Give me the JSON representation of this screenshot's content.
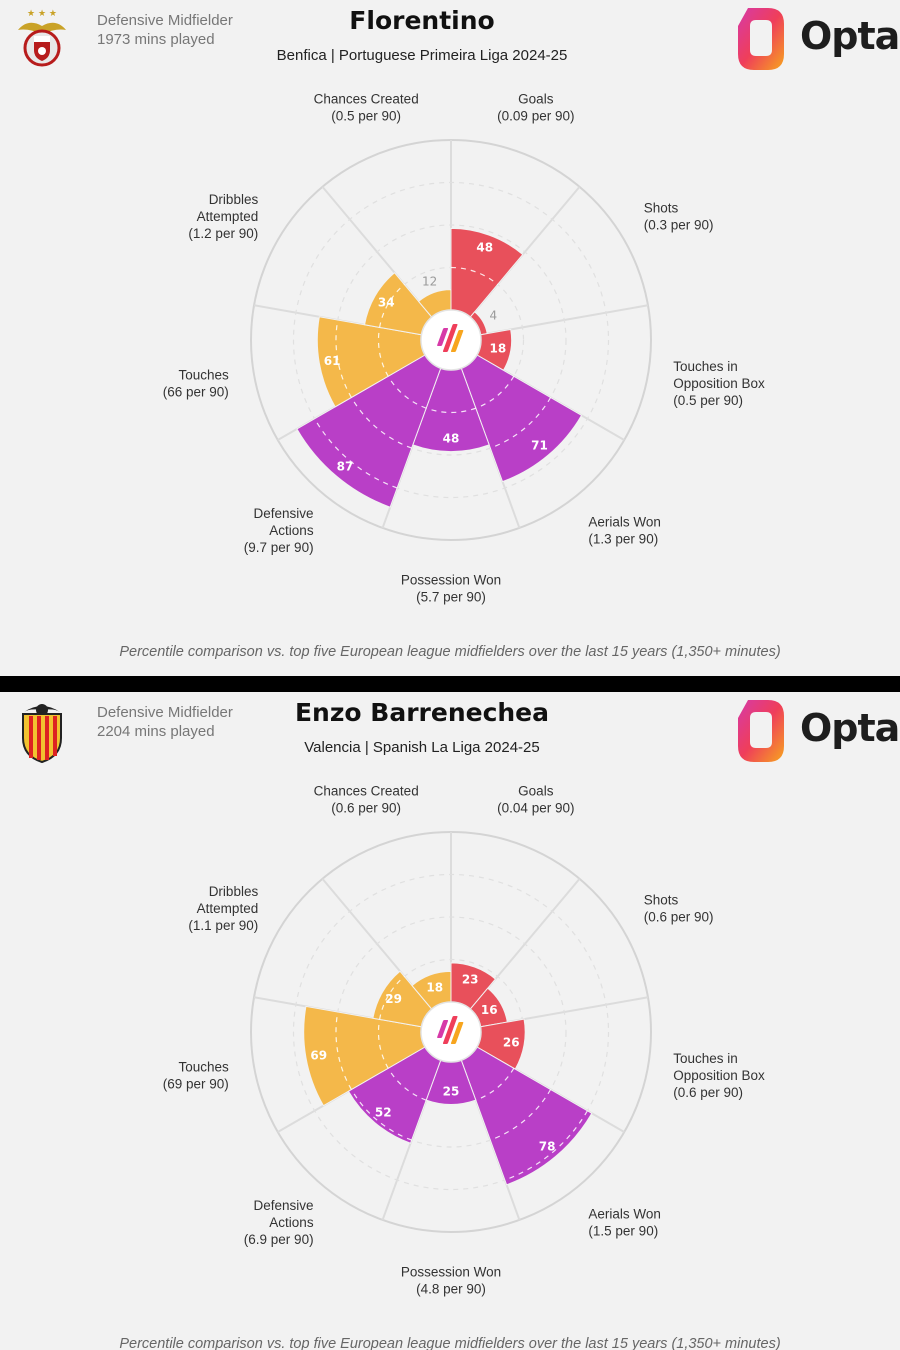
{
  "colors": {
    "attacking": "#e8505b",
    "possession": "#f4b84a",
    "defending": "#b93fc7",
    "background": "#f2f2f2"
  },
  "opta": {
    "logo_text": "Opta"
  },
  "panels": [
    {
      "crest_icon": "benfica-crest-icon",
      "role": "Defensive Midfielder",
      "minutes": "1973 mins played",
      "player": "Florentino",
      "subtitle": "Benfica | Portuguese Primeira Liga 2024-25",
      "footnote": "Percentile comparison vs. top five European league midfielders over the last 15 years (1,350+ minutes)",
      "chart_data": {
        "type": "radar",
        "unit": "percentile",
        "rlim": [
          0,
          100
        ],
        "categories": [
          {
            "name": [
              "Goals"
            ],
            "rate": "(0.09 per 90)",
            "value": 48,
            "group": "attacking"
          },
          {
            "name": [
              "Shots"
            ],
            "rate": "(0.3 per 90)",
            "value": 4,
            "group": "attacking"
          },
          {
            "name": [
              "Touches in",
              "Opposition Box"
            ],
            "rate": "(0.5 per 90)",
            "value": 18,
            "group": "attacking"
          },
          {
            "name": [
              "Aerials Won"
            ],
            "rate": "(1.3 per 90)",
            "value": 71,
            "group": "defending"
          },
          {
            "name": [
              "Possession Won"
            ],
            "rate": "(5.7 per 90)",
            "value": 48,
            "group": "defending"
          },
          {
            "name": [
              "Defensive",
              "Actions"
            ],
            "rate": "(9.7 per 90)",
            "value": 87,
            "group": "defending"
          },
          {
            "name": [
              "Touches"
            ],
            "rate": "(66 per 90)",
            "value": 61,
            "group": "possession"
          },
          {
            "name": [
              "Dribbles",
              "Attempted"
            ],
            "rate": "(1.2 per 90)",
            "value": 34,
            "group": "possession"
          },
          {
            "name": [
              "Chances Created"
            ],
            "rate": "(0.5 per 90)",
            "value": 12,
            "group": "possession"
          }
        ]
      }
    },
    {
      "crest_icon": "valencia-crest-icon",
      "role": "Defensive Midfielder",
      "minutes": "2204 mins played",
      "player": "Enzo Barrenechea",
      "subtitle": "Valencia | Spanish La Liga 2024-25",
      "footnote": "Percentile comparison vs. top five European league midfielders over the last 15 years (1,350+ minutes)",
      "chart_data": {
        "type": "radar",
        "unit": "percentile",
        "rlim": [
          0,
          100
        ],
        "categories": [
          {
            "name": [
              "Goals"
            ],
            "rate": "(0.04 per 90)",
            "value": 23,
            "group": "attacking"
          },
          {
            "name": [
              "Shots"
            ],
            "rate": "(0.6 per 90)",
            "value": 16,
            "group": "attacking"
          },
          {
            "name": [
              "Touches in",
              "Opposition Box"
            ],
            "rate": "(0.6 per 90)",
            "value": 26,
            "group": "attacking"
          },
          {
            "name": [
              "Aerials Won"
            ],
            "rate": "(1.5 per 90)",
            "value": 78,
            "group": "defending"
          },
          {
            "name": [
              "Possession Won"
            ],
            "rate": "(4.8 per 90)",
            "value": 25,
            "group": "defending"
          },
          {
            "name": [
              "Defensive",
              "Actions"
            ],
            "rate": "(6.9 per 90)",
            "value": 52,
            "group": "defending"
          },
          {
            "name": [
              "Touches"
            ],
            "rate": "(69 per 90)",
            "value": 69,
            "group": "possession"
          },
          {
            "name": [
              "Dribbles",
              "Attempted"
            ],
            "rate": "(1.1 per 90)",
            "value": 29,
            "group": "possession"
          },
          {
            "name": [
              "Chances Created"
            ],
            "rate": "(0.6 per 90)",
            "value": 18,
            "group": "possession"
          }
        ]
      }
    }
  ]
}
